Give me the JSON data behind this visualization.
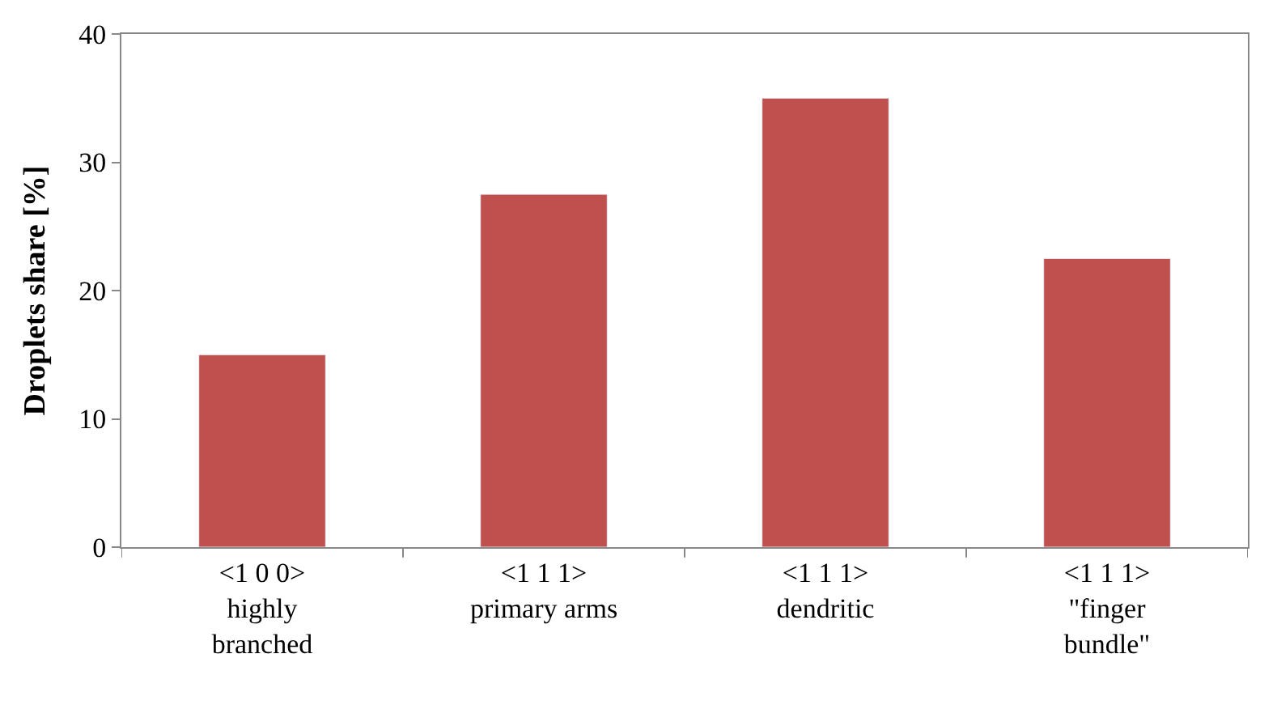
{
  "chart_data": {
    "type": "bar",
    "ylabel": "Droplets share [%]",
    "categories": [
      "<1 0 0>\nhighly\nbranched",
      "<1 1 1>\nprimary arms",
      "<1 1 1>\ndendritic",
      "<1 1 1>\n\"finger\nbundle\""
    ],
    "values": [
      15,
      27.5,
      35,
      22.5
    ],
    "color": "#c0504d",
    "ylim": [
      0,
      40
    ],
    "yticks": [
      0,
      10,
      20,
      30,
      40
    ]
  }
}
